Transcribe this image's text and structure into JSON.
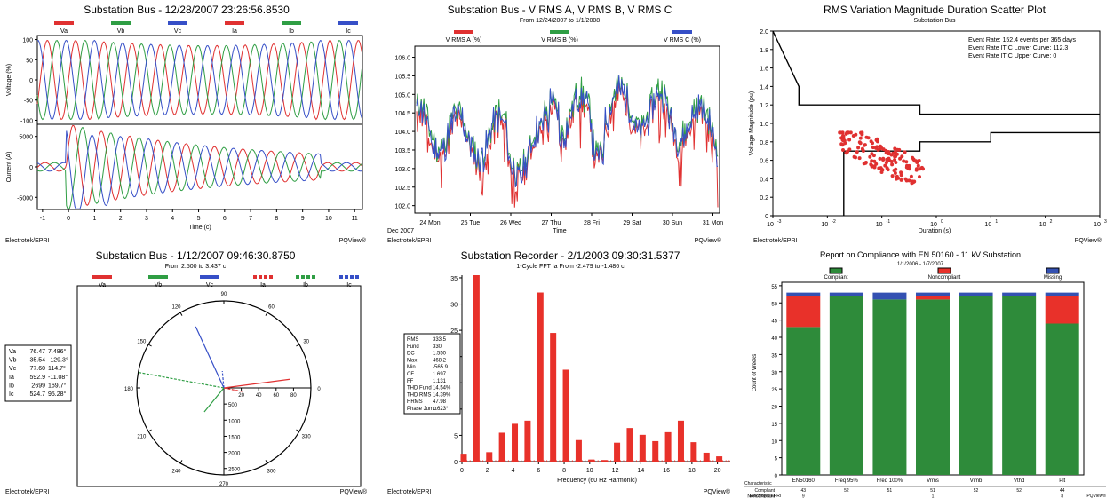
{
  "colors": {
    "va": "#e03131",
    "vb": "#2f9e44",
    "vc": "#364fc7",
    "bar": "#e8312a",
    "compliant": "#2e8b3a",
    "noncompliant": "#e8312a",
    "missing": "#3451b2"
  },
  "footer": {
    "left": "Electrotek/EPRI",
    "right": "PQView®"
  },
  "chart_data": [
    {
      "id": "waveform",
      "type": "line",
      "title": "Substation Bus - 12/28/2007 23:26:56.8530",
      "legend": [
        "Va",
        "Vb",
        "Vc",
        "Ia",
        "Ib",
        "Ic"
      ],
      "xlabel": "Time (c)",
      "x_ticks": [
        "-1",
        "0",
        "1",
        "2",
        "3",
        "4",
        "5",
        "6",
        "7",
        "8",
        "9",
        "10",
        "11"
      ],
      "top": {
        "ylabel": "Voltage (%)",
        "y_ticks": [
          "100",
          "50",
          "0",
          "-50",
          "-100"
        ],
        "ylim": [
          -110,
          110
        ]
      },
      "bottom": {
        "ylabel": "Current (A)",
        "y_ticks": [
          "5000",
          "0",
          "-5000"
        ],
        "ylim": [
          -7000,
          7000
        ]
      },
      "xlim": [
        -1.2,
        11.3
      ]
    },
    {
      "id": "trend",
      "type": "line",
      "title": "Substation Bus - V RMS A, V RMS B, V RMS C",
      "subtitle": "From 12/24/2007 to 1/1/2008",
      "legend": [
        "V RMS A (%)",
        "V RMS B (%)",
        "V RMS C (%)"
      ],
      "xlabel": "Time",
      "x_ticks": [
        "24 Mon",
        "25 Tue",
        "26 Wed",
        "27 Thu",
        "28 Fri",
        "29 Sat",
        "30 Sun",
        "31 Mon"
      ],
      "x_sub": "Dec 2007",
      "y_ticks": [
        "106.0",
        "105.5",
        "105.0",
        "104.5",
        "104.0",
        "103.5",
        "103.0",
        "102.5",
        "102.0"
      ],
      "ylim": [
        101.8,
        106.3
      ]
    },
    {
      "id": "itic",
      "type": "scatter",
      "title": "RMS Variation Magnitude Duration Scatter Plot",
      "subtitle": "Substation Bus",
      "xlabel": "Duration (s)",
      "ylabel": "Voltage Magnitude (pu)",
      "y_ticks": [
        "2.0",
        "1.8",
        "1.6",
        "1.4",
        "1.2",
        "1.0",
        "0.8",
        "0.6",
        "0.4",
        "0.2",
        "0"
      ],
      "x_ticks": [
        "10",
        "10",
        "10",
        "10",
        "10",
        "10",
        "10"
      ],
      "x_exps": [
        "-3",
        "-2",
        "-1",
        "0",
        "1",
        "2",
        "3"
      ],
      "annotations": [
        "Event Rate: 152.4 events per 365 days",
        "Event Rate ITIC Lower Curve: 112.3",
        "Event Rate ITIC Upper Curve: 0"
      ],
      "xlim": [
        -3,
        3
      ],
      "ylim": [
        0,
        2
      ]
    },
    {
      "id": "phasor",
      "type": "other",
      "title": "Substation Bus - 1/12/2007 09:46:30.8750",
      "subtitle": "From 2.500 to 3.437 c",
      "legend": [
        "Va",
        "Vb",
        "Vc",
        "Ia",
        "Ib",
        "Ic"
      ],
      "angle_labels": [
        "90",
        "60",
        "30",
        "0",
        "330",
        "300",
        "270",
        "240",
        "210",
        "180",
        "150",
        "120"
      ],
      "mag_labels": [
        "20",
        "40",
        "60",
        "80",
        "500",
        "1000",
        "1500",
        "2000",
        "2500"
      ],
      "table": [
        [
          "Va",
          "76.47",
          "7.486°"
        ],
        [
          "Vb",
          "35.54",
          "-129.3°"
        ],
        [
          "Vc",
          "77.60",
          "114.7°"
        ],
        [
          "Ia",
          "592.9",
          "-11.08°"
        ],
        [
          "Ib",
          "2699",
          "169.7°"
        ],
        [
          "Ic",
          "524.7",
          "95.28°"
        ]
      ]
    },
    {
      "id": "fft",
      "type": "bar",
      "title": "Substation Recorder - 2/1/2003 09:30:31.5377",
      "subtitle": "1-Cycle FFT Ia From -2.479 to -1.486 c",
      "xlabel": "Frequency (60 Hz Harmonic)",
      "ylabel": "Current (A)",
      "x_ticks": [
        "0",
        "2",
        "4",
        "6",
        "8",
        "10",
        "12",
        "14",
        "16",
        "18",
        "20"
      ],
      "y_ticks": [
        "35",
        "30",
        "25",
        "20",
        "15",
        "10",
        "5",
        "0"
      ],
      "ylim": [
        0,
        35.5
      ],
      "x": [
        0,
        1,
        2,
        3,
        4,
        5,
        6,
        7,
        8,
        9,
        10,
        11,
        12,
        13,
        14,
        15,
        16,
        17,
        18,
        19,
        20
      ],
      "values": [
        1.5,
        35.5,
        1.8,
        5.5,
        7.2,
        7.8,
        32.2,
        24.5,
        17.5,
        4.1,
        0.4,
        0.3,
        3.6,
        6.4,
        5.1,
        3.9,
        5.6,
        7.8,
        3.7,
        1.7,
        1.0
      ],
      "stats": [
        [
          "RMS",
          "333.5"
        ],
        [
          "Fund",
          "330"
        ],
        [
          "DC",
          "1.550"
        ],
        [
          "Max",
          "468.2"
        ],
        [
          "Min",
          "-565.9"
        ],
        [
          "CF",
          "1.697"
        ],
        [
          "FF",
          "1.131"
        ],
        [
          "THD Fund",
          "14.54%"
        ],
        [
          "THD RMS",
          "14.39%"
        ],
        [
          "HRMS",
          "47.98"
        ],
        [
          "Phase Jump",
          "1.623°"
        ]
      ]
    },
    {
      "id": "compliance",
      "type": "bar",
      "title": "Report on Compliance with EN 50160 - 11 kV Substation",
      "subtitle": "1/1/2006 - 1/7/2007",
      "legend": [
        "Compliant",
        "Noncompliant",
        "Missing"
      ],
      "ylabel": "Count of Weeks",
      "y_ticks": [
        "55",
        "50",
        "45",
        "40",
        "35",
        "30",
        "25",
        "20",
        "15",
        "10",
        "5",
        "0"
      ],
      "categories": [
        "EN50160",
        "Freq 95%",
        "Freq 100%",
        "Vrms",
        "Vimb",
        "Vthd",
        "Plt"
      ],
      "series": [
        {
          "name": "Compliant",
          "values": [
            43,
            52,
            51,
            51,
            52,
            52,
            44
          ]
        },
        {
          "name": "Noncompliant",
          "values": [
            9,
            0,
            0,
            1,
            0,
            0,
            8
          ]
        },
        {
          "name": "Missing",
          "values": [
            1,
            1,
            2,
            1,
            1,
            1,
            1
          ]
        }
      ],
      "table_header": "Characteristic",
      "table_rows": [
        {
          "label": "Compliant",
          "cells": [
            "43",
            "52",
            "51",
            "51",
            "52",
            "52",
            "44"
          ]
        },
        {
          "label": "Noncompliant",
          "cells": [
            "9",
            "",
            "",
            "1",
            "",
            "",
            "8"
          ]
        },
        {
          "label": "Missing",
          "cells": [
            "1",
            "1",
            "2",
            "1",
            "1",
            "1",
            "1"
          ]
        }
      ]
    }
  ]
}
